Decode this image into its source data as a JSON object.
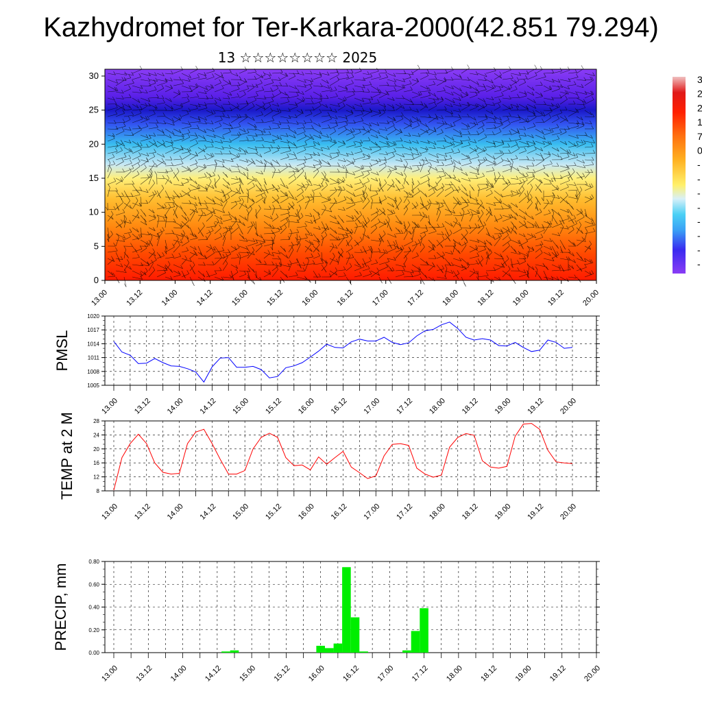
{
  "page": {
    "title": "Kazhydromet for Ter-Karkara-2000(42.851 79.294)",
    "subtitle": "13 ☆☆☆☆☆☆☆☆ 2025"
  },
  "chart_data": [
    {
      "id": "cross-section",
      "type": "heatmap",
      "xlabel": "",
      "ylabel": "",
      "ylim": [
        0,
        31
      ],
      "yticks": [
        0,
        5,
        10,
        15,
        20,
        25,
        30
      ],
      "xtick_labels": [
        "13.00",
        "13.12",
        "14.00",
        "14.12",
        "15.00",
        "15.12",
        "16.00",
        "16.12",
        "17.00",
        "17.12",
        "18.00",
        "18.12",
        "19.00",
        "19.12",
        "20.00"
      ],
      "overlay": "wind barbs",
      "colorbar_labels": [
        "3",
        "2",
        "2",
        "1",
        "7",
        "0",
        "-",
        "-",
        "-",
        "-",
        "-",
        "-",
        "-",
        "-"
      ],
      "color_levels": [
        {
          "y": 0,
          "color": "#ff1a00"
        },
        {
          "y": 4,
          "color": "#ff4a00"
        },
        {
          "y": 8,
          "color": "#ff8a10"
        },
        {
          "y": 12,
          "color": "#ffbe30"
        },
        {
          "y": 15,
          "color": "#fff07a"
        },
        {
          "y": 17,
          "color": "#c8e8f4"
        },
        {
          "y": 20,
          "color": "#38bdf0"
        },
        {
          "y": 23,
          "color": "#3252f0"
        },
        {
          "y": 25,
          "color": "#1a18c8"
        },
        {
          "y": 27,
          "color": "#5a20e8"
        },
        {
          "y": 31,
          "color": "#8a3cf5"
        }
      ]
    },
    {
      "id": "pmsl",
      "type": "line",
      "ylabel": "PMSL",
      "ylim": [
        1005,
        1020
      ],
      "yticks": [
        1005,
        1008,
        1011,
        1014,
        1017,
        1020
      ],
      "xtick_labels": [
        "13.00",
        "13.12",
        "14.00",
        "14.12",
        "15.00",
        "15.12",
        "16.00",
        "16.12",
        "17.00",
        "17.12",
        "18.00",
        "18.12",
        "19.00",
        "19.12",
        "20.00"
      ],
      "x": [
        0,
        3,
        6,
        9,
        12,
        15,
        18,
        21,
        24,
        27,
        30,
        33,
        36,
        39,
        42,
        45,
        48,
        51,
        54,
        57,
        60,
        63,
        66,
        69,
        72,
        75,
        78,
        81,
        84,
        87,
        90,
        93,
        96,
        99,
        102,
        105,
        108,
        111,
        114,
        117,
        120,
        123,
        126,
        129,
        132,
        135,
        138,
        141,
        144,
        147,
        150,
        153,
        156,
        159,
        162,
        165,
        168
      ],
      "series": [
        {
          "color": "#0000ff",
          "values": [
            1014.5,
            1012.2,
            1011.5,
            1009.7,
            1009.8,
            1010.8,
            1009.9,
            1009.2,
            1009.1,
            1008.6,
            1007.9,
            1005.7,
            1009.0,
            1010.9,
            1011.0,
            1008.9,
            1008.9,
            1009.1,
            1008.4,
            1006.6,
            1006.9,
            1008.8,
            1009.2,
            1009.9,
            1011.1,
            1012.4,
            1013.9,
            1013.2,
            1013.1,
            1014.4,
            1015.0,
            1014.6,
            1014.6,
            1015.4,
            1014.3,
            1013.8,
            1014.2,
            1015.7,
            1016.8,
            1017.1,
            1018.1,
            1018.7,
            1017.3,
            1015.4,
            1014.8,
            1015.1,
            1014.8,
            1013.6,
            1013.5,
            1014.3,
            1013.2,
            1012.3,
            1012.6,
            1014.8,
            1014.3,
            1013.0,
            1013.2
          ]
        }
      ]
    },
    {
      "id": "temp",
      "type": "line",
      "ylabel": "TEMP at 2 M",
      "ylim": [
        8,
        28
      ],
      "yticks": [
        8,
        12,
        16,
        20,
        24,
        28
      ],
      "xtick_labels": [
        "13.00",
        "13.12",
        "14.00",
        "14.12",
        "15.00",
        "15.12",
        "16.00",
        "16.12",
        "17.00",
        "17.12",
        "18.00",
        "18.12",
        "19.00",
        "19.12",
        "20.00"
      ],
      "x": [
        0,
        3,
        6,
        9,
        12,
        15,
        18,
        21,
        24,
        27,
        30,
        33,
        36,
        39,
        42,
        45,
        48,
        51,
        54,
        57,
        60,
        63,
        66,
        69,
        72,
        75,
        78,
        81,
        84,
        87,
        90,
        93,
        96,
        99,
        102,
        105,
        108,
        111,
        114,
        117,
        120,
        123,
        126,
        129,
        132,
        135,
        138,
        141,
        144,
        147,
        150,
        153,
        156,
        159,
        162,
        165,
        168
      ],
      "series": [
        {
          "color": "#ff0000",
          "values": [
            8.2,
            17.5,
            21.5,
            24.2,
            21.5,
            16.0,
            13.3,
            12.8,
            13.0,
            21.5,
            24.8,
            25.6,
            21.5,
            17.0,
            12.8,
            12.8,
            13.8,
            20.0,
            23.3,
            24.5,
            23.3,
            17.5,
            15.2,
            15.4,
            14.0,
            17.7,
            15.6,
            17.5,
            19.3,
            14.8,
            13.2,
            11.5,
            12.3,
            18.0,
            21.3,
            21.5,
            21.0,
            14.5,
            12.8,
            11.9,
            12.5,
            20.5,
            23.3,
            24.4,
            23.9,
            16.6,
            14.8,
            14.5,
            15.0,
            23.6,
            27.1,
            27.3,
            25.6,
            19.6,
            16.3,
            16.0,
            15.8
          ]
        }
      ]
    },
    {
      "id": "precip",
      "type": "bar",
      "ylabel": "PRECIP, mm",
      "ylim": [
        0,
        0.8
      ],
      "yticks": [
        "0.00",
        "0.20",
        "0.40",
        "0.60",
        "0.80"
      ],
      "xtick_labels": [
        "13.00",
        "13.12",
        "14.00",
        "14.12",
        "15.00",
        "15.12",
        "16.00",
        "16.12",
        "17.00",
        "17.12",
        "18.00",
        "18.12",
        "19.00",
        "19.12",
        "20.00"
      ],
      "bar_width_hours": 3,
      "bars": [
        {
          "x": 39,
          "value": 0.01
        },
        {
          "x": 42,
          "value": 0.02
        },
        {
          "x": 72,
          "value": 0.06
        },
        {
          "x": 75,
          "value": 0.04
        },
        {
          "x": 78,
          "value": 0.08
        },
        {
          "x": 81,
          "value": 0.75
        },
        {
          "x": 84,
          "value": 0.31
        },
        {
          "x": 87,
          "value": 0.01
        },
        {
          "x": 102,
          "value": 0.02
        },
        {
          "x": 105,
          "value": 0.19
        },
        {
          "x": 108,
          "value": 0.39
        }
      ],
      "color": "#00ee00"
    }
  ]
}
